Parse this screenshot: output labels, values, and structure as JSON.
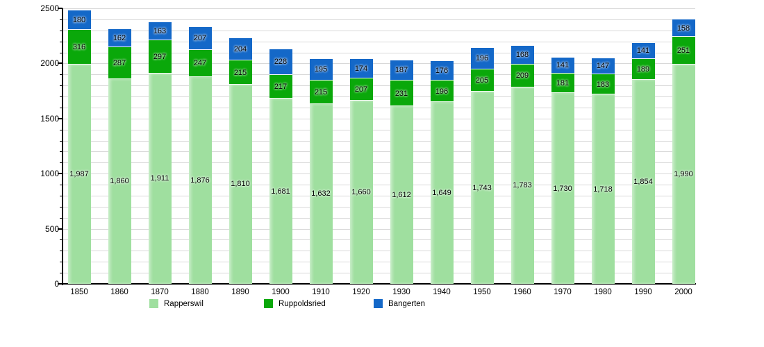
{
  "chart_data": {
    "type": "bar",
    "stacked": true,
    "title": "",
    "xlabel": "",
    "ylabel": "",
    "ylim": [
      0,
      2500
    ],
    "y_major_ticks": [
      0,
      500,
      1000,
      1500,
      2000,
      2500
    ],
    "y_minor_step": 100,
    "grid": true,
    "legend_position": "bottom",
    "categories": [
      "1850",
      "1860",
      "1870",
      "1880",
      "1890",
      "1900",
      "1910",
      "1920",
      "1930",
      "1940",
      "1950",
      "1960",
      "1970",
      "1980",
      "1990",
      "2000"
    ],
    "series": [
      {
        "name": "Rapperswil",
        "color": "#9FDF9F",
        "label_format": "comma",
        "values": [
          1987,
          1860,
          1911,
          1876,
          1810,
          1681,
          1632,
          1660,
          1612,
          1649,
          1743,
          1783,
          1730,
          1718,
          1854,
          1990
        ]
      },
      {
        "name": "Ruppoldsried",
        "color": "#0AA80A",
        "label_format": "plain",
        "values": [
          316,
          287,
          297,
          247,
          215,
          217,
          215,
          207,
          231,
          196,
          205,
          209,
          181,
          183,
          189,
          251
        ]
      },
      {
        "name": "Bangerten",
        "color": "#1468C8",
        "label_format": "plain",
        "values": [
          180,
          162,
          163,
          207,
          204,
          228,
          195,
          174,
          187,
          176,
          196,
          168,
          141,
          147,
          141,
          158
        ]
      }
    ],
    "colors": {
      "gridline": "#d8d8d8",
      "axis": "#000000",
      "label": "#000000"
    }
  }
}
